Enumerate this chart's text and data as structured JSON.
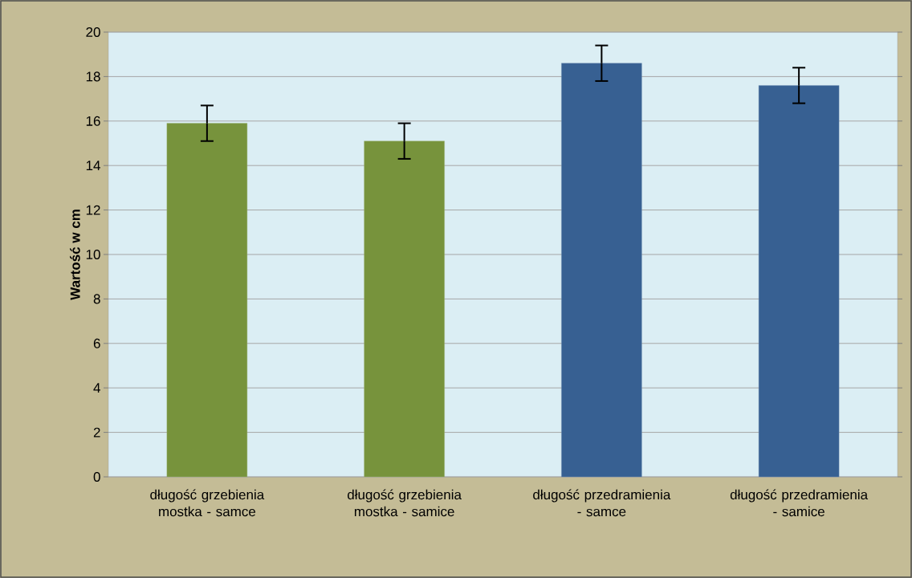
{
  "chart_data": {
    "type": "bar",
    "ylabel": "Wartość w cm",
    "categories": [
      "długość grzebienia mostka - samce",
      "długość grzebienia mostka - samice",
      "długość przedramienia - samce",
      "długość przedramienia - samice"
    ],
    "values": [
      15.9,
      15.1,
      18.6,
      17.6
    ],
    "errors": [
      0.8,
      0.8,
      0.8,
      0.8
    ],
    "colors": [
      "#77933c",
      "#77933c",
      "#376092",
      "#376092"
    ],
    "ylim": [
      0,
      20
    ],
    "yticks": [
      0,
      2,
      4,
      6,
      8,
      10,
      12,
      14,
      16,
      18,
      20
    ],
    "grid": "y"
  }
}
